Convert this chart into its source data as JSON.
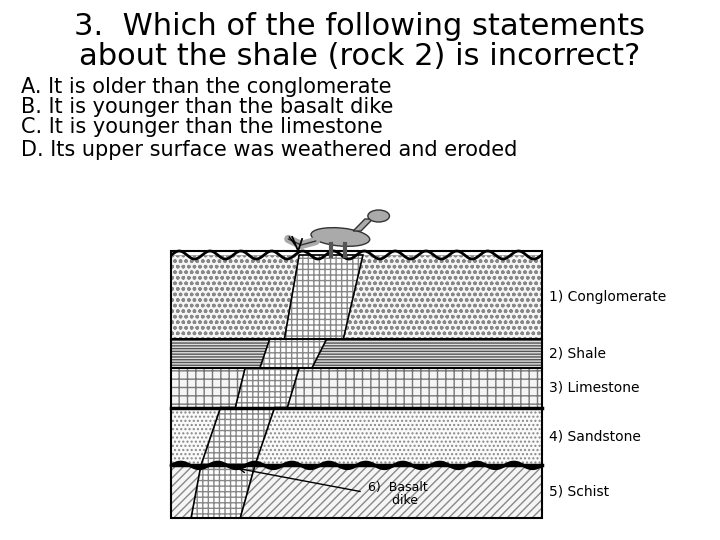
{
  "title_line1": "3.  Which of the following statements",
  "title_line2": "about the shale (rock 2) is incorrect?",
  "answers": [
    "A. It is older than the conglomerate",
    "B. It is younger than the basalt dike",
    "C. It is younger than the limestone",
    "D. Its upper surface was weathered and eroded"
  ],
  "layer_labels": [
    [
      "1) Conglomerate",
      0.82
    ],
    [
      "2) Shale",
      0.6
    ],
    [
      "3) Limestone",
      0.44
    ],
    [
      "4) Sandstone",
      0.27
    ],
    [
      "5) Schist",
      0.1
    ]
  ],
  "basalt_label_line1": "6)  Basalt",
  "basalt_label_line2": "      dike",
  "bg_color": "#ffffff",
  "text_color": "#000000",
  "title_fontsize": 22,
  "answer_fontsize": 15,
  "label_fontsize": 10
}
